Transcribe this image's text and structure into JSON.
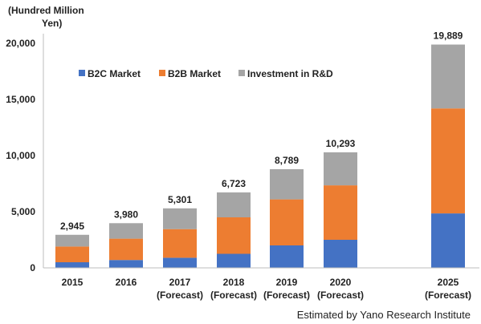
{
  "chart_data": {
    "type": "bar",
    "stacked": true,
    "unit_label_lines": [
      "(Hundred Million",
      "Yen)"
    ],
    "categories": [
      [
        "2015"
      ],
      [
        "2016"
      ],
      [
        "2017",
        "(Forecast)"
      ],
      [
        "2018",
        "(Forecast)"
      ],
      [
        "2019",
        "(Forecast)"
      ],
      [
        "2020",
        "(Forecast)"
      ],
      [
        "2025",
        "(Forecast)"
      ]
    ],
    "series": [
      {
        "name": "B2C Market",
        "color": "#4472c4",
        "values": [
          500,
          700,
          900,
          1250,
          2000,
          2500,
          4850
        ]
      },
      {
        "name": "B2B Market",
        "color": "#ed7d31",
        "values": [
          1400,
          1900,
          2550,
          3250,
          4100,
          4850,
          9350
        ]
      },
      {
        "name": "Investment in R&D",
        "color": "#a5a5a5",
        "values": [
          1045,
          1380,
          1851,
          2223,
          2689,
          2943,
          5689
        ]
      }
    ],
    "totals": [
      "2,945",
      "3,980",
      "5,301",
      "6,723",
      "8,789",
      "10,293",
      "19,889"
    ],
    "y_ticks": [
      "0",
      "5,000",
      "10,000",
      "15,000",
      "20,000"
    ],
    "ylim": [
      0,
      20000
    ],
    "grid": false,
    "legend_position": "top-left-inside"
  },
  "source_note": "Estimated by Yano Research Institute"
}
